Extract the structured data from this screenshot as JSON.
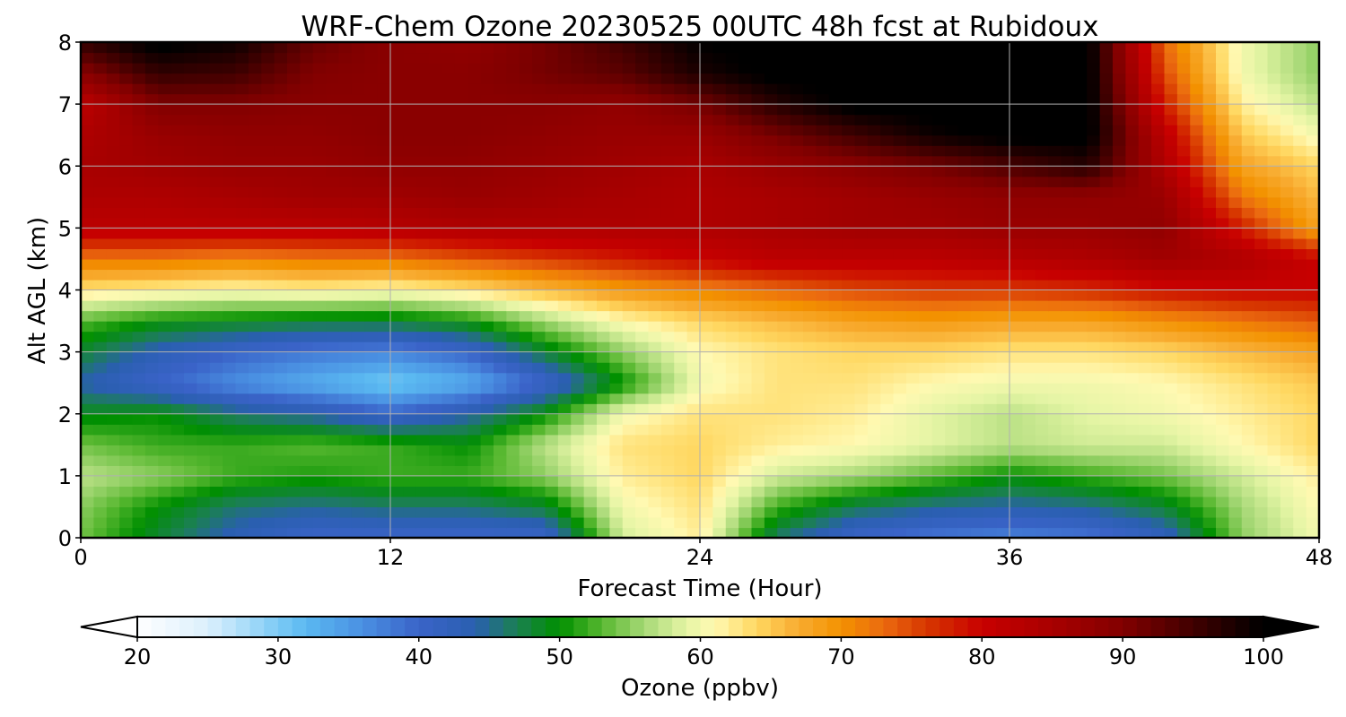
{
  "chart_data": {
    "type": "heatmap",
    "title": "WRF-Chem Ozone  20230525 00UTC 48h fcst at Rubidoux",
    "xlabel": "Forecast Time (Hour)",
    "ylabel": "Alt AGL (km)",
    "x_ticks": [
      "0",
      "12",
      "24",
      "36",
      "48"
    ],
    "y_ticks": [
      "0",
      "1",
      "2",
      "3",
      "4",
      "5",
      "6",
      "7",
      "8"
    ],
    "xlim": [
      0,
      48
    ],
    "ylim": [
      0,
      8
    ],
    "grid": true,
    "x": [
      0,
      3,
      6,
      9,
      12,
      15,
      18,
      21,
      24,
      27,
      30,
      33,
      36,
      39,
      42,
      45,
      48
    ],
    "y": [
      0,
      0.5,
      1,
      1.5,
      2,
      2.5,
      3,
      3.5,
      4,
      4.5,
      5,
      5.5,
      6,
      6.5,
      7,
      7.5,
      8
    ],
    "z": [
      [
        54,
        48,
        43,
        40,
        40,
        40,
        40,
        58,
        62,
        46,
        40,
        38,
        37,
        38,
        42,
        55,
        60
      ],
      [
        55,
        50,
        46,
        45,
        46,
        46,
        48,
        60,
        63,
        52,
        47,
        45,
        44,
        45,
        48,
        56,
        61
      ],
      [
        57,
        55,
        52,
        51,
        52,
        52,
        55,
        62,
        64,
        58,
        56,
        53,
        50,
        52,
        54,
        58,
        62
      ],
      [
        54,
        52,
        52,
        53,
        52,
        50,
        57,
        63,
        64,
        62,
        61,
        59,
        57,
        58,
        58,
        61,
        64
      ],
      [
        49,
        50,
        46,
        44,
        40,
        44,
        50,
        60,
        63,
        63,
        62,
        59,
        57,
        59,
        60,
        62,
        64
      ],
      [
        44,
        40,
        36,
        33,
        30,
        33,
        40,
        50,
        60,
        63,
        63,
        61,
        60,
        60,
        61,
        63,
        65
      ],
      [
        48,
        43,
        40,
        38,
        37,
        40,
        48,
        55,
        61,
        63,
        64,
        64,
        63,
        63,
        64,
        66,
        68
      ],
      [
        53,
        50,
        49,
        48,
        48,
        50,
        56,
        61,
        64,
        66,
        68,
        69,
        68,
        68,
        70,
        72,
        74
      ],
      [
        63,
        62,
        61,
        62,
        61,
        63,
        66,
        69,
        71,
        73,
        75,
        76,
        76,
        77,
        79,
        80,
        80
      ],
      [
        72,
        72,
        71,
        72,
        72,
        74,
        76,
        78,
        80,
        82,
        82,
        82,
        83,
        84,
        86,
        84,
        80
      ],
      [
        82,
        82,
        82,
        82,
        83,
        84,
        84,
        84,
        84,
        85,
        86,
        86,
        87,
        87,
        88,
        78,
        68
      ],
      [
        84,
        84,
        85,
        86,
        86,
        87,
        86,
        85,
        84,
        85,
        86,
        87,
        88,
        88,
        87,
        72,
        66
      ],
      [
        85,
        86,
        87,
        87,
        88,
        88,
        87,
        86,
        85,
        87,
        89,
        91,
        94,
        97,
        84,
        68,
        64
      ],
      [
        84,
        87,
        88,
        88,
        89,
        89,
        88,
        87,
        87,
        91,
        95,
        99,
        101,
        101,
        82,
        65,
        60
      ],
      [
        82,
        90,
        90,
        89,
        89,
        89,
        89,
        88,
        91,
        97,
        101,
        101,
        101,
        101,
        78,
        62,
        57
      ],
      [
        89,
        96,
        95,
        90,
        89,
        89,
        91,
        93,
        98,
        101,
        101,
        101,
        101,
        101,
        75,
        60,
        55
      ],
      [
        96,
        101,
        99,
        92,
        89,
        88,
        91,
        95,
        100,
        101,
        101,
        101,
        101,
        101,
        73,
        60,
        55
      ]
    ]
  },
  "colorbar": {
    "label": "Ozone  (ppbv)",
    "ticks": [
      "20",
      "30",
      "40",
      "50",
      "60",
      "70",
      "80",
      "90",
      "100"
    ],
    "min": 20,
    "max": 100,
    "step": 1,
    "colors": [
      [
        20,
        "#ffffff"
      ],
      [
        25,
        "#dbeffc"
      ],
      [
        27,
        "#b7e2fa"
      ],
      [
        30,
        "#7ccaf5"
      ],
      [
        32,
        "#5ab8f1"
      ],
      [
        36,
        "#4a90e2"
      ],
      [
        40,
        "#3a63c8"
      ],
      [
        44,
        "#2a5fb0"
      ],
      [
        47,
        "#1a8050"
      ],
      [
        50,
        "#008f00"
      ],
      [
        53,
        "#58b830"
      ],
      [
        56,
        "#a6d876"
      ],
      [
        59,
        "#e5f5a5"
      ],
      [
        61,
        "#fff9b2"
      ],
      [
        64,
        "#ffd760"
      ],
      [
        67,
        "#f8ab30"
      ],
      [
        70,
        "#f39200"
      ],
      [
        73,
        "#eb6a10"
      ],
      [
        76,
        "#d73800"
      ],
      [
        80,
        "#c80000"
      ],
      [
        85,
        "#a80000"
      ],
      [
        90,
        "#820000"
      ],
      [
        95,
        "#400000"
      ],
      [
        100,
        "#000000"
      ]
    ]
  }
}
